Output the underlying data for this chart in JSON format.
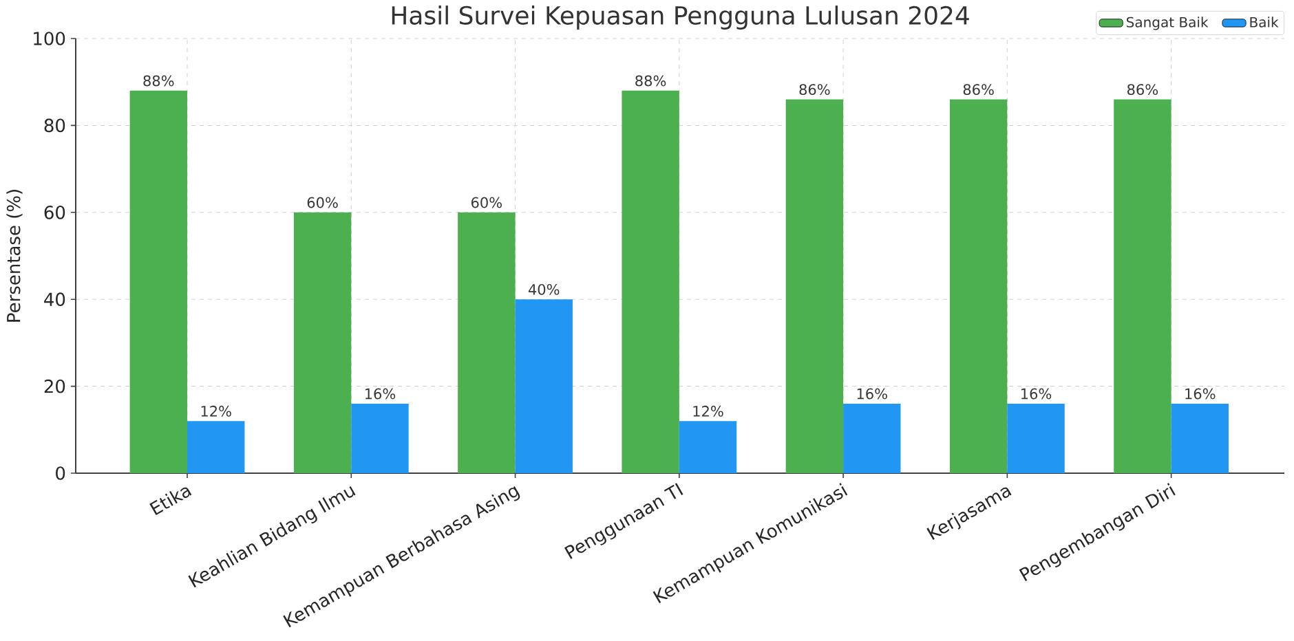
{
  "chart_data": {
    "type": "bar",
    "title": "Hasil Survei Kepuasan Pengguna Lulusan 2024",
    "ylabel": "Persentase (%)",
    "categories": [
      "Etika",
      "Keahlian Bidang Ilmu",
      "Kemampuan Berbahasa Asing",
      "Penggunaan TI",
      "Kemampuan Komunikasi",
      "Kerjasama",
      "Pengembangan Diri"
    ],
    "series": [
      {
        "name": "Sangat Baik",
        "color": "#4caf50",
        "values": [
          88,
          60,
          60,
          88,
          86,
          86,
          86
        ],
        "value_labels": [
          "88%",
          "60%",
          "60%",
          "88%",
          "86%",
          "86%",
          "86%"
        ]
      },
      {
        "name": "Baik",
        "color": "#2196f3",
        "values": [
          12,
          16,
          40,
          12,
          16,
          16,
          16
        ],
        "value_labels": [
          "12%",
          "16%",
          "40%",
          "12%",
          "16%",
          "16%",
          "16%"
        ]
      }
    ],
    "ylim": [
      0,
      100
    ],
    "yticks": [
      0,
      20,
      40,
      60,
      80,
      100
    ],
    "grid": true,
    "legend": "top right"
  }
}
